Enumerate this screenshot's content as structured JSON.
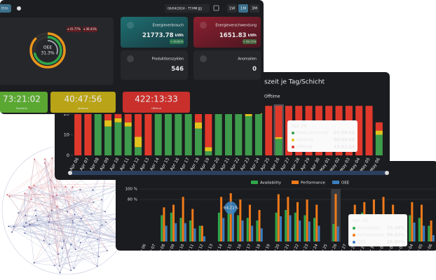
{
  "toolbar": {
    "button": "ttm",
    "date_range": "06/04/2024 - TT.MM.JJJJ",
    "periods": [
      "1W",
      "1M",
      "3M"
    ],
    "active_period": 1
  },
  "oee": {
    "label": "OEE",
    "value": 31.3,
    "value_label": "31.3%",
    "rings": [
      {
        "color": "#e8951c",
        "value": 88
      },
      {
        "color": "#2fa84a",
        "value": 72
      }
    ],
    "badges": [
      "▾ 41.77%",
      "▾ 36.43%"
    ]
  },
  "kpis": [
    {
      "title": "Energieverbrauch",
      "value": "21773.78",
      "unit": "kWh",
      "badge": "+ 39.82%"
    },
    {
      "title": "Energieverschwendung",
      "value": "1651.83",
      "unit": "kWh",
      "badge": "+ 58.15%"
    },
    {
      "title": "Produktionszyklen",
      "value": "546"
    },
    {
      "title": "Anomalien",
      "value": "0"
    }
  ],
  "time_tiles": [
    {
      "value": "73:21:02",
      "label": "Runtime",
      "color": "#5aa832"
    },
    {
      "value": "40:47:56",
      "label": "Idletime",
      "color": "#b9a316"
    },
    {
      "value": "422:13:33",
      "label": "Offtime",
      "color": "#c9302c"
    }
  ],
  "production_chart": {
    "type": "bar",
    "stacked": true,
    "title": "szeit je Tag/Schicht",
    "categories": [
      "Apr 06",
      "Apr 07",
      "Apr 08",
      "Apr 09",
      "Apr 10",
      "Apr 11",
      "Apr 12",
      "Apr 13",
      "Apr 14",
      "Apr 15",
      "Apr 16",
      "Apr 17",
      "Apr 18",
      "Apr 19",
      "Apr 20",
      "Apr 21",
      "Apr 22",
      "Apr 23",
      "Apr 24",
      "Apr 25",
      "Apr 26",
      "Apr 27",
      "Apr 28",
      "Apr 29",
      "Apr 30",
      "May 01",
      "May 02",
      "May 03",
      "May 04",
      "May 05",
      "May 06"
    ],
    "series": [
      {
        "name": "Productiontime",
        "color": "#3e9c4c",
        "values": [
          0,
          0,
          20,
          14,
          16,
          14,
          4,
          0,
          21,
          21,
          20,
          20,
          13,
          2,
          21,
          21,
          20,
          19,
          20,
          0,
          7.99,
          0,
          0,
          0,
          0,
          0,
          0,
          0,
          0,
          0,
          10
        ]
      },
      {
        "name": "Idletime",
        "color": "#e2c21c",
        "values": [
          0,
          0,
          2,
          3,
          2,
          2,
          5,
          0,
          1,
          1,
          1,
          1,
          3,
          2,
          1,
          1,
          1,
          1,
          1,
          0,
          0.83,
          0,
          0,
          0,
          0,
          0,
          0,
          0,
          0,
          0,
          2
        ]
      },
      {
        "name": "Offtime",
        "color": "#e0392c",
        "values": [
          24,
          24,
          2,
          7,
          6,
          8,
          15,
          24,
          2,
          2,
          3,
          3,
          8,
          20,
          2,
          2,
          3,
          4,
          3,
          24,
          15.19,
          24,
          24,
          24,
          24,
          24,
          24,
          24,
          24,
          24,
          4
        ]
      }
    ],
    "ylim": [
      0,
      24
    ],
    "yticks": [
      0,
      10,
      20
    ],
    "highlight": 20,
    "tooltip": {
      "title": "Apr 26",
      "values": [
        "07:59:24",
        "00:49:48",
        "15:11:24"
      ]
    }
  },
  "oee_chart": {
    "type": "bar",
    "grouped": true,
    "categories": [
      "Apr 06",
      "Apr 07",
      "Apr 08",
      "Apr 09",
      "Apr 10",
      "Apr 11",
      "Apr 12",
      "Apr 13",
      "Apr 14",
      "Apr 15",
      "Apr 16",
      "Apr 17",
      "Apr 18",
      "Apr 19",
      "Apr 20",
      "Apr 21",
      "Apr 22",
      "Apr 23",
      "Apr 24",
      "Apr 25",
      "Apr 26",
      "Apr 27",
      "Apr 28",
      "Apr 29",
      "Apr 30",
      "May 01",
      "May 02",
      "May 03",
      "May 04",
      "May 05",
      "May 06"
    ],
    "series": [
      {
        "name": "Availability",
        "color": "#2fa84a",
        "values": [
          0,
          0,
          50,
          55,
          45,
          40,
          30,
          0,
          55,
          70,
          50,
          45,
          40,
          0,
          55,
          60,
          55,
          50,
          45,
          0,
          33.28,
          0,
          50,
          55,
          50,
          45,
          40,
          0,
          50,
          45,
          30
        ]
      },
      {
        "name": "Performance",
        "color": "#f07a1a",
        "values": [
          0,
          0,
          65,
          70,
          85,
          62,
          30,
          0,
          85,
          92,
          80,
          70,
          60,
          0,
          90,
          85,
          75,
          80,
          70,
          0,
          90.62,
          0,
          70,
          75,
          80,
          85,
          70,
          0,
          75,
          70,
          40
        ]
      },
      {
        "name": "OEE",
        "color": "#3a7fc0",
        "values": [
          0,
          0,
          30,
          35,
          35,
          25,
          10,
          0,
          45,
          64.21,
          40,
          30,
          25,
          0,
          48,
          50,
          40,
          38,
          30,
          0,
          28.65,
          0,
          33,
          40,
          38,
          36,
          27,
          0,
          36,
          30,
          12
        ]
      }
    ],
    "ylim": [
      0,
      100
    ],
    "yticks": [
      {
        "value": 80,
        "label": "80 %"
      },
      {
        "value": 100,
        "label": "100 %"
      }
    ],
    "annotation": {
      "index": 9,
      "label": "64.21%"
    },
    "highlight": 20,
    "tooltip": {
      "title": "Apr 26",
      "values": [
        "33.28%",
        "90.62%",
        "28.65%"
      ]
    }
  }
}
